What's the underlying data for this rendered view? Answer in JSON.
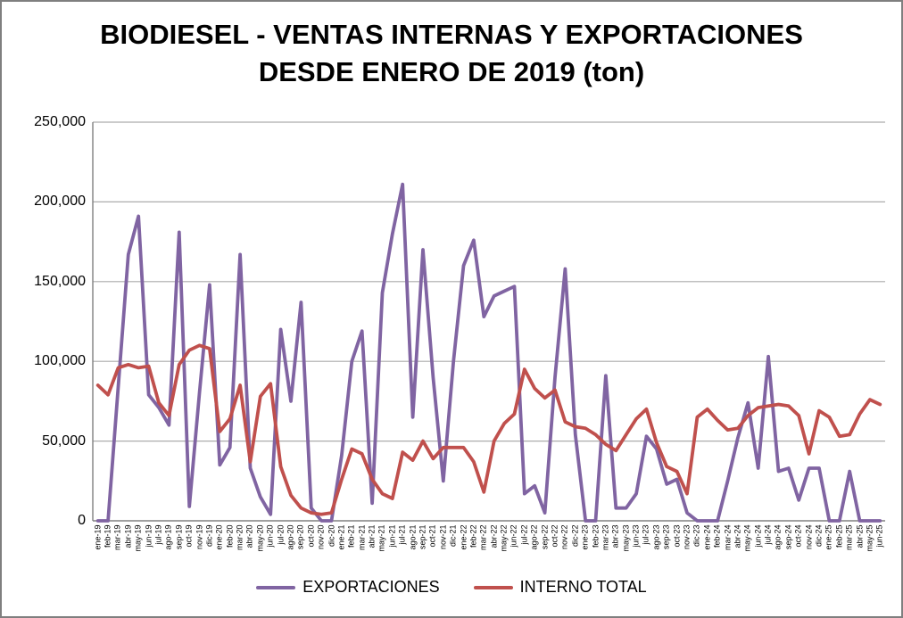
{
  "title_line1": "BIODIESEL - VENTAS INTERNAS Y EXPORTACIONES",
  "title_line2": "DESDE ENERO DE 2019 (ton)",
  "chart_data": {
    "type": "line",
    "title": "BIODIESEL - VENTAS INTERNAS Y EXPORTACIONES DESDE ENERO DE 2019 (ton)",
    "ylim": [
      0,
      250000
    ],
    "ytick_step": 50000,
    "y_tick_labels": [
      "0",
      "50,000",
      "100,000",
      "150,000",
      "200,000",
      "250,000"
    ],
    "grid": "horizontal",
    "legend_position": "bottom",
    "axis_color": "#808080",
    "grid_color": "#acacac",
    "categories": [
      "ene-19",
      "feb-19",
      "mar-19",
      "abr-19",
      "may-19",
      "jun-19",
      "jul-19",
      "ago-19",
      "sep-19",
      "oct-19",
      "nov-19",
      "dic-19",
      "ene-20",
      "feb-20",
      "mar-20",
      "abr-20",
      "may-20",
      "jun-20",
      "jul-20",
      "ago-20",
      "sep-20",
      "oct-20",
      "nov-20",
      "dic-20",
      "ene-21",
      "feb-21",
      "mar-21",
      "abr-21",
      "may-21",
      "jun-21",
      "jul-21",
      "ago-21",
      "sep-21",
      "oct-21",
      "nov-21",
      "dic-21",
      "ene-22",
      "feb-22",
      "mar-22",
      "abr-22",
      "may-22",
      "jun-22",
      "jul-22",
      "ago-22",
      "sep-22",
      "oct-22",
      "nov-22",
      "dic-22",
      "ene-23",
      "feb-23",
      "mar-23",
      "abr-23",
      "may-23",
      "jun-23",
      "jul-23",
      "ago-23",
      "sep-23",
      "oct-23",
      "nov-23",
      "dic-23",
      "ene-24",
      "feb-24",
      "mar-24",
      "abr-24",
      "may-24",
      "jun-24",
      "jul-24",
      "ago-24",
      "sep-24",
      "oct-24",
      "nov-24",
      "dic-24",
      "ene-25",
      "feb-25",
      "mar-25",
      "abr-25",
      "may-25",
      "jun-25"
    ],
    "series": [
      {
        "name": "EXPORTACIONES",
        "color": "#8064A2",
        "values": [
          0,
          0,
          84000,
          167000,
          191000,
          79000,
          71000,
          60000,
          181000,
          9000,
          80000,
          148000,
          35000,
          46000,
          167000,
          33000,
          15000,
          4000,
          120000,
          75000,
          137000,
          8000,
          0,
          0,
          41000,
          100000,
          119000,
          11000,
          143000,
          180000,
          211000,
          65000,
          170000,
          90000,
          25000,
          100000,
          160000,
          176000,
          128000,
          141000,
          144000,
          147000,
          17000,
          22000,
          5000,
          90000,
          158000,
          54000,
          0,
          0,
          91000,
          8000,
          8000,
          17000,
          53000,
          45000,
          23000,
          26000,
          5000,
          0,
          0,
          0,
          25000,
          52000,
          74000,
          33000,
          103000,
          31000,
          33000,
          13000,
          33000,
          33000,
          0,
          0,
          31000,
          0,
          0,
          0
        ]
      },
      {
        "name": "INTERNO TOTAL",
        "color": "#C0504D",
        "values": [
          85000,
          79000,
          96000,
          98000,
          96000,
          97000,
          74000,
          66000,
          98000,
          107000,
          110000,
          108000,
          56000,
          64000,
          85000,
          37000,
          78000,
          86000,
          34000,
          16000,
          8000,
          5000,
          4000,
          5000,
          26000,
          45000,
          42000,
          26000,
          17000,
          14000,
          43000,
          38000,
          50000,
          39000,
          46000,
          46000,
          46000,
          37000,
          18000,
          50000,
          61000,
          67000,
          95000,
          83000,
          77000,
          82000,
          62000,
          59000,
          58000,
          54000,
          48000,
          44000,
          54000,
          64000,
          70000,
          49000,
          34000,
          31000,
          17000,
          65000,
          70000,
          63000,
          57000,
          58000,
          66000,
          71000,
          72000,
          73000,
          72000,
          66000,
          42000,
          69000,
          65000,
          53000,
          54000,
          67000,
          76000,
          73000
        ]
      }
    ]
  }
}
